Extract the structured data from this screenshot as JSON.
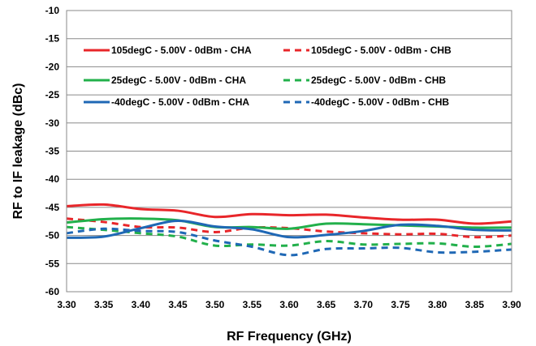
{
  "chart_data": {
    "type": "line",
    "title": "",
    "xlabel": "RF Frequency (GHz)",
    "ylabel": "RF to IF leakage (dBc)",
    "xlim": [
      3.3,
      3.9
    ],
    "ylim": [
      -60,
      -10
    ],
    "x_ticks": [
      3.3,
      3.35,
      3.4,
      3.45,
      3.5,
      3.55,
      3.6,
      3.65,
      3.7,
      3.75,
      3.8,
      3.85,
      3.9
    ],
    "x_tick_labels": [
      "3.30",
      "3.35",
      "3.40",
      "3.45",
      "3.50",
      "3.55",
      "3.60",
      "3.65",
      "3.70",
      "3.75",
      "3.80",
      "3.85",
      "3.90"
    ],
    "y_ticks": [
      -10,
      -15,
      -20,
      -25,
      -30,
      -35,
      -40,
      -45,
      -50,
      -55,
      -60
    ],
    "y_tick_labels": [
      "-10",
      "-15",
      "-20",
      "-25",
      "-30",
      "-35",
      "-40",
      "-45",
      "-50",
      "-55",
      "-60"
    ],
    "grid": "horizontal",
    "legend_position": "upper-inside",
    "x": [
      3.3,
      3.35,
      3.4,
      3.45,
      3.5,
      3.55,
      3.6,
      3.65,
      3.7,
      3.75,
      3.8,
      3.85,
      3.9
    ],
    "series": [
      {
        "name": "105degC - 5.00V - 0dBm - CHA",
        "color": "#e8262a",
        "dash": "solid",
        "values": [
          -44.8,
          -44.5,
          -45.3,
          -45.6,
          -46.7,
          -46.2,
          -46.4,
          -46.3,
          -46.8,
          -47.2,
          -47.2,
          -47.9,
          -47.5
        ]
      },
      {
        "name": "105degC - 5.00V - 0dBm - CHB",
        "color": "#e8262a",
        "dash": "dashed",
        "values": [
          -47.0,
          -47.6,
          -48.5,
          -48.6,
          -49.4,
          -48.6,
          -48.7,
          -49.3,
          -49.6,
          -49.8,
          -49.7,
          -50.3,
          -50.0
        ]
      },
      {
        "name": "25degC - 5.00V - 0dBm - CHA",
        "color": "#22b04b",
        "dash": "solid",
        "values": [
          -47.7,
          -47.1,
          -47.0,
          -47.3,
          -48.5,
          -48.5,
          -48.8,
          -47.9,
          -48.0,
          -48.2,
          -48.4,
          -48.6,
          -48.6
        ]
      },
      {
        "name": "25degC - 5.00V - 0dBm - CHB",
        "color": "#22b04b",
        "dash": "dashed",
        "values": [
          -48.5,
          -49.0,
          -49.6,
          -50.2,
          -51.8,
          -51.6,
          -51.8,
          -51.0,
          -51.6,
          -51.5,
          -51.4,
          -52.0,
          -51.5
        ]
      },
      {
        "name": "-40degC - 5.00V - 0dBm - CHA",
        "color": "#1f68b5",
        "dash": "solid",
        "values": [
          -50.4,
          -50.2,
          -48.7,
          -47.4,
          -48.4,
          -48.9,
          -50.3,
          -49.9,
          -49.2,
          -48.1,
          -48.3,
          -49.0,
          -49.1
        ]
      },
      {
        "name": "-40degC - 5.00V - 0dBm - CHB",
        "color": "#1f68b5",
        "dash": "dashed",
        "values": [
          -49.6,
          -48.8,
          -49.2,
          -49.4,
          -50.9,
          -52.0,
          -53.5,
          -52.4,
          -52.3,
          -52.2,
          -53.0,
          -52.9,
          -52.5
        ]
      }
    ]
  }
}
